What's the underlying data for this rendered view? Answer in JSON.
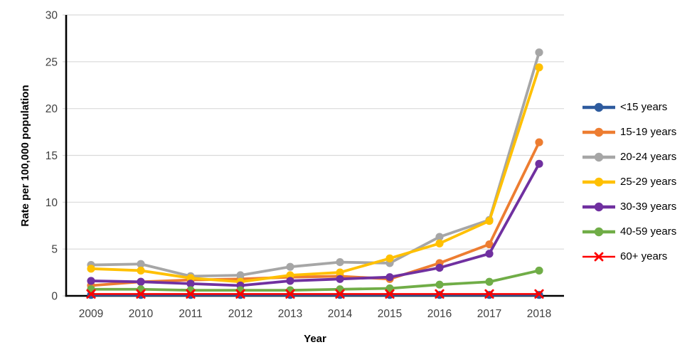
{
  "chart_data": {
    "type": "line",
    "title": "",
    "xlabel": "Year",
    "ylabel": "Rate per 100,000 population",
    "x": [
      "2009",
      "2010",
      "2011",
      "2012",
      "2013",
      "2014",
      "2015",
      "2016",
      "2017",
      "2018"
    ],
    "ylim": [
      0,
      30
    ],
    "ytick_step": 5,
    "grid": "horizontal-only",
    "legend_position": "right",
    "axis_color": "#000000",
    "grid_color": "#d9d9d9",
    "tick_label_color": "#3f3f3f",
    "series": [
      {
        "name": "<15 years",
        "color": "#2e5b9e",
        "marker": "circle",
        "values": [
          0.1,
          0.1,
          0.1,
          0.1,
          0.1,
          0.1,
          0.1,
          0.1,
          0.1,
          0.1
        ]
      },
      {
        "name": "15-19 years",
        "color": "#ed7d31",
        "marker": "circle",
        "values": [
          1.1,
          1.5,
          1.7,
          1.8,
          2.0,
          2.1,
          1.8,
          3.5,
          5.5,
          16.4
        ]
      },
      {
        "name": "20-24 years",
        "color": "#a6a6a6",
        "marker": "circle",
        "values": [
          3.3,
          3.4,
          2.1,
          2.2,
          3.1,
          3.6,
          3.5,
          6.3,
          8.1,
          26.0
        ]
      },
      {
        "name": "25-29 years",
        "color": "#ffc000",
        "marker": "circle",
        "values": [
          2.9,
          2.7,
          1.9,
          1.5,
          2.2,
          2.5,
          4.0,
          5.6,
          8.0,
          24.4
        ]
      },
      {
        "name": "30-39 years",
        "color": "#7030a0",
        "marker": "circle",
        "values": [
          1.6,
          1.5,
          1.3,
          1.1,
          1.6,
          1.8,
          2.0,
          3.0,
          4.5,
          14.1
        ]
      },
      {
        "name": "40-59 years",
        "color": "#70ad47",
        "marker": "circle",
        "values": [
          0.7,
          0.7,
          0.6,
          0.6,
          0.6,
          0.7,
          0.8,
          1.2,
          1.5,
          2.7
        ]
      },
      {
        "name": "60+ years",
        "color": "#fe0000",
        "marker": "x",
        "values": [
          0.2,
          0.2,
          0.2,
          0.2,
          0.2,
          0.2,
          0.2,
          0.2,
          0.2,
          0.2
        ]
      }
    ]
  }
}
